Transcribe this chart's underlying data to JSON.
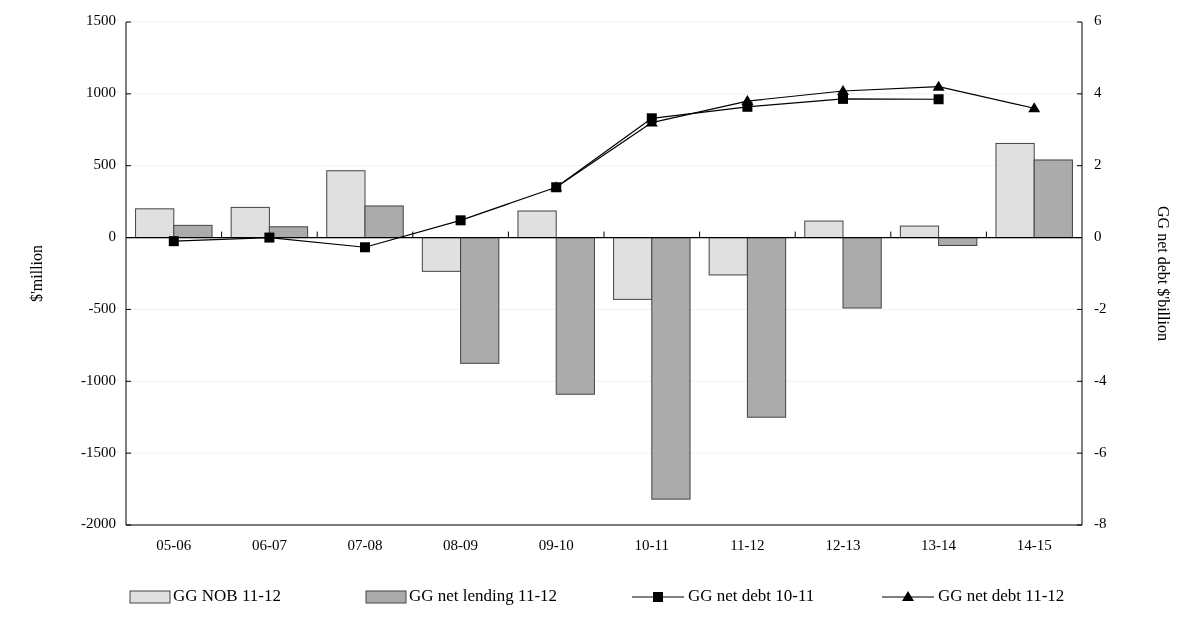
{
  "chart_data": {
    "type": "bar",
    "categories": [
      "05-06",
      "06-07",
      "07-08",
      "08-09",
      "09-10",
      "10-11",
      "11-12",
      "12-13",
      "13-14",
      "14-15"
    ],
    "ylabel": "$'million",
    "y2label": "GG net debt $'billion",
    "ylim": [
      -2000,
      1500
    ],
    "yticks": [
      -2000,
      -1500,
      -1000,
      -500,
      0,
      500,
      1000,
      1500
    ],
    "y2lim": [
      -8,
      6
    ],
    "y2ticks": [
      -8,
      -6,
      -4,
      -2,
      0,
      2,
      4,
      6
    ],
    "grid": "y",
    "legend": "bottom",
    "series": [
      {
        "name": "GG NOB 11-12",
        "color": "#e0e0e0",
        "values": [
          200,
          210,
          465,
          -235,
          185,
          -430,
          -260,
          115,
          80,
          655
        ]
      },
      {
        "name": "GG net lending 11-12",
        "color": "#ababab",
        "values": [
          85,
          75,
          220,
          -875,
          -1090,
          -1820,
          -1250,
          -490,
          -55,
          540
        ]
      },
      {
        "name": "GG net debt 10-11",
        "type": "line",
        "axis": "y2",
        "marker": "square",
        "color": "#000000",
        "values": [
          -0.1,
          0,
          -0.27,
          0.48,
          1.4,
          3.32,
          3.64,
          3.86,
          3.85,
          null
        ]
      },
      {
        "name": "GG net debt 11-12",
        "type": "line",
        "axis": "y2",
        "marker": "triangle",
        "color": "#000000",
        "values": [
          null,
          null,
          null,
          null,
          1.4,
          3.2,
          3.8,
          4.08,
          4.2,
          3.6
        ]
      }
    ]
  }
}
